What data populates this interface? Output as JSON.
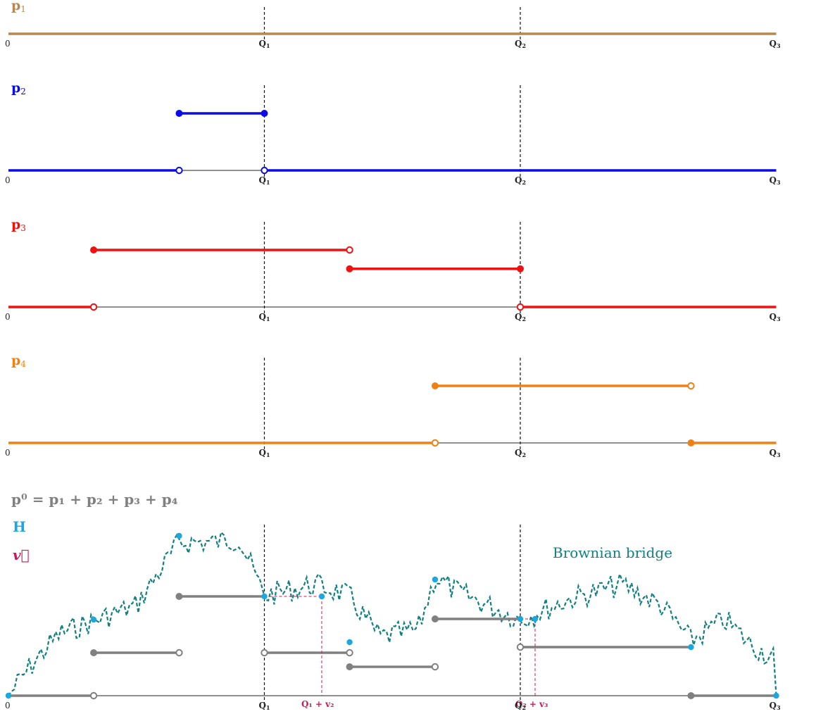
{
  "axis_labels": {
    "zero": "0",
    "q1": "Q",
    "q2": "Q",
    "q3": "Q",
    "sub1": "1",
    "sub2": "2",
    "sub3": "3"
  },
  "colors": {
    "p1": "#b8864e",
    "p2": "#0b0be8",
    "p3": "#ef1010",
    "p4": "#f08013",
    "gray": "#808080",
    "h": "#1ba8de",
    "v": "#c81a5a",
    "brownian": "#138080"
  },
  "panels": [
    {
      "id": "p1",
      "label": "p",
      "sub": "1",
      "color": "#b8864e",
      "base": [
        [
          0,
          3,
          "solid"
        ]
      ],
      "raised": [],
      "open": [],
      "filled": []
    },
    {
      "id": "p2",
      "label": "p",
      "sub": "2",
      "color": "#0b0be8",
      "base": [
        [
          0,
          0.667,
          "solid"
        ],
        [
          0.667,
          1,
          "thin"
        ],
        [
          1,
          3,
          "solid"
        ]
      ],
      "raised": [
        [
          0.667,
          1,
          1
        ]
      ],
      "filled": [
        [
          0.667,
          1
        ],
        [
          1,
          1
        ]
      ],
      "open": [
        [
          0.667,
          0
        ],
        [
          1,
          0
        ]
      ]
    },
    {
      "id": "p3",
      "label": "p",
      "sub": "3",
      "color": "#ef1010",
      "base": [
        [
          0,
          0.333,
          "solid"
        ],
        [
          0.333,
          2,
          "thin"
        ],
        [
          2,
          3,
          "solid"
        ]
      ],
      "raised": [
        [
          0.333,
          1.333,
          1
        ],
        [
          1.333,
          2,
          0.67
        ]
      ],
      "filled": [
        [
          0.333,
          1
        ],
        [
          1.333,
          0.67
        ],
        [
          2,
          0.67
        ]
      ],
      "open": [
        [
          1.333,
          1
        ],
        [
          0.333,
          0
        ],
        [
          2,
          0
        ]
      ]
    },
    {
      "id": "p4",
      "label": "p",
      "sub": "4",
      "color": "#f08013",
      "base": [
        [
          0,
          1.667,
          "solid"
        ],
        [
          1.667,
          2.667,
          "thin"
        ],
        [
          2.667,
          3,
          "solid"
        ]
      ],
      "raised": [
        [
          1.667,
          2.667,
          1
        ]
      ],
      "filled": [
        [
          1.667,
          1
        ],
        [
          2.667,
          0
        ]
      ],
      "open": [
        [
          2.667,
          1
        ],
        [
          1.667,
          0
        ]
      ]
    }
  ],
  "legend": {
    "p0_formula": "p⁰ = p₁ + p₂ + p₃ + p₄",
    "h": "H",
    "v": "v⃗"
  },
  "brownian_label": "Brownian bridge",
  "annotations": {
    "q1v2": "Q₁ + v₂",
    "q2v3": "Q₂ + v₃"
  }
}
